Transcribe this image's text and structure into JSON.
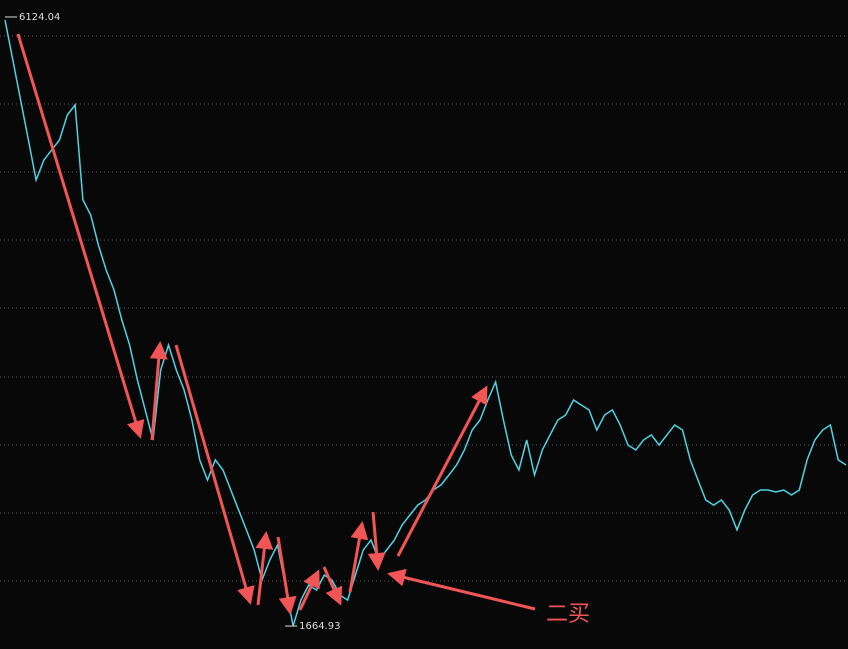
{
  "chart_data": {
    "type": "line",
    "series": [
      {
        "color": "#4fd3e3",
        "values": [
          6124.04,
          5830,
          5535,
          5241,
          4947,
          5094,
          5168,
          5241,
          5425,
          5499,
          4800,
          4689,
          4468,
          4284,
          4137,
          3917,
          3733,
          3475,
          3255,
          3034,
          3549,
          3733,
          3549,
          3402,
          3181,
          2887,
          2739,
          2887,
          2813,
          2666,
          2519,
          2372,
          2224,
          2003,
          2151,
          2261,
          1967,
          1664.93,
          1856,
          1967,
          1930,
          2040,
          2003,
          1893,
          1856,
          2040,
          2224,
          2298,
          2151,
          2224,
          2298,
          2408,
          2482,
          2555,
          2592,
          2666,
          2703,
          2776,
          2850,
          2960,
          3107,
          3181,
          3328,
          3460,
          3181,
          2923,
          2813,
          3034,
          2776,
          2960,
          3071,
          3181,
          3218,
          3328,
          3291,
          3255,
          3107,
          3218,
          3255,
          3144,
          2997,
          2960,
          3034,
          3071,
          2997,
          3071,
          3144,
          3107,
          2887,
          2739,
          2592,
          2555,
          2592,
          2519,
          2372,
          2519,
          2629,
          2666,
          2666,
          2651,
          2666,
          2629,
          2666,
          2887,
          3034,
          3107,
          3144,
          2887,
          2850
        ]
      }
    ],
    "ylim": [
      1496,
      6271
    ],
    "max_label": 6124.04,
    "min_label": 1664.93,
    "annotation": "二买"
  }
}
